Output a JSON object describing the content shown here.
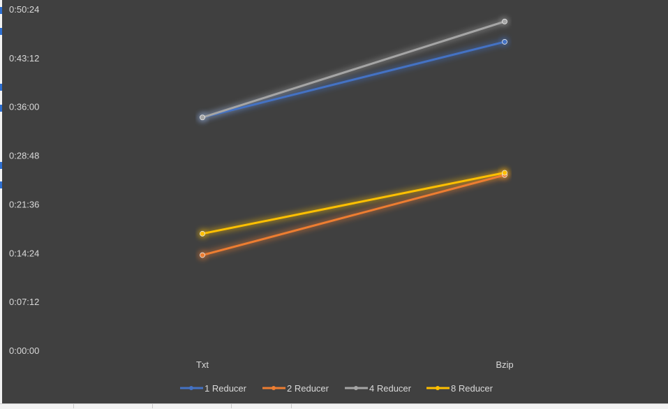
{
  "chart_data": {
    "type": "line",
    "categories": [
      "Txt",
      "Bzip"
    ],
    "series": [
      {
        "name": "1 Reducer",
        "color": "#4472c4",
        "values": [
          "0:34:30",
          "0:45:40"
        ]
      },
      {
        "name": "2 Reducer",
        "color": "#ed7d31",
        "values": [
          "0:14:10",
          "0:26:00"
        ]
      },
      {
        "name": "4 Reducer",
        "color": "#a5a5a5",
        "values": [
          "0:34:30",
          "0:48:40"
        ]
      },
      {
        "name": "8 Reducer",
        "color": "#ffc000",
        "values": [
          "0:17:20",
          "0:26:20"
        ]
      }
    ],
    "y_ticks": [
      "0:00:00",
      "0:07:12",
      "0:14:24",
      "0:21:36",
      "0:28:48",
      "0:36:00",
      "0:43:12",
      "0:50:24"
    ],
    "ylim": [
      "0:00:00",
      "0:50:24"
    ],
    "title": "",
    "xlabel": "",
    "ylabel": "",
    "grid": false,
    "legend_position": "bottom",
    "background_color": "#404040",
    "text_color": "#d9d9d9"
  }
}
